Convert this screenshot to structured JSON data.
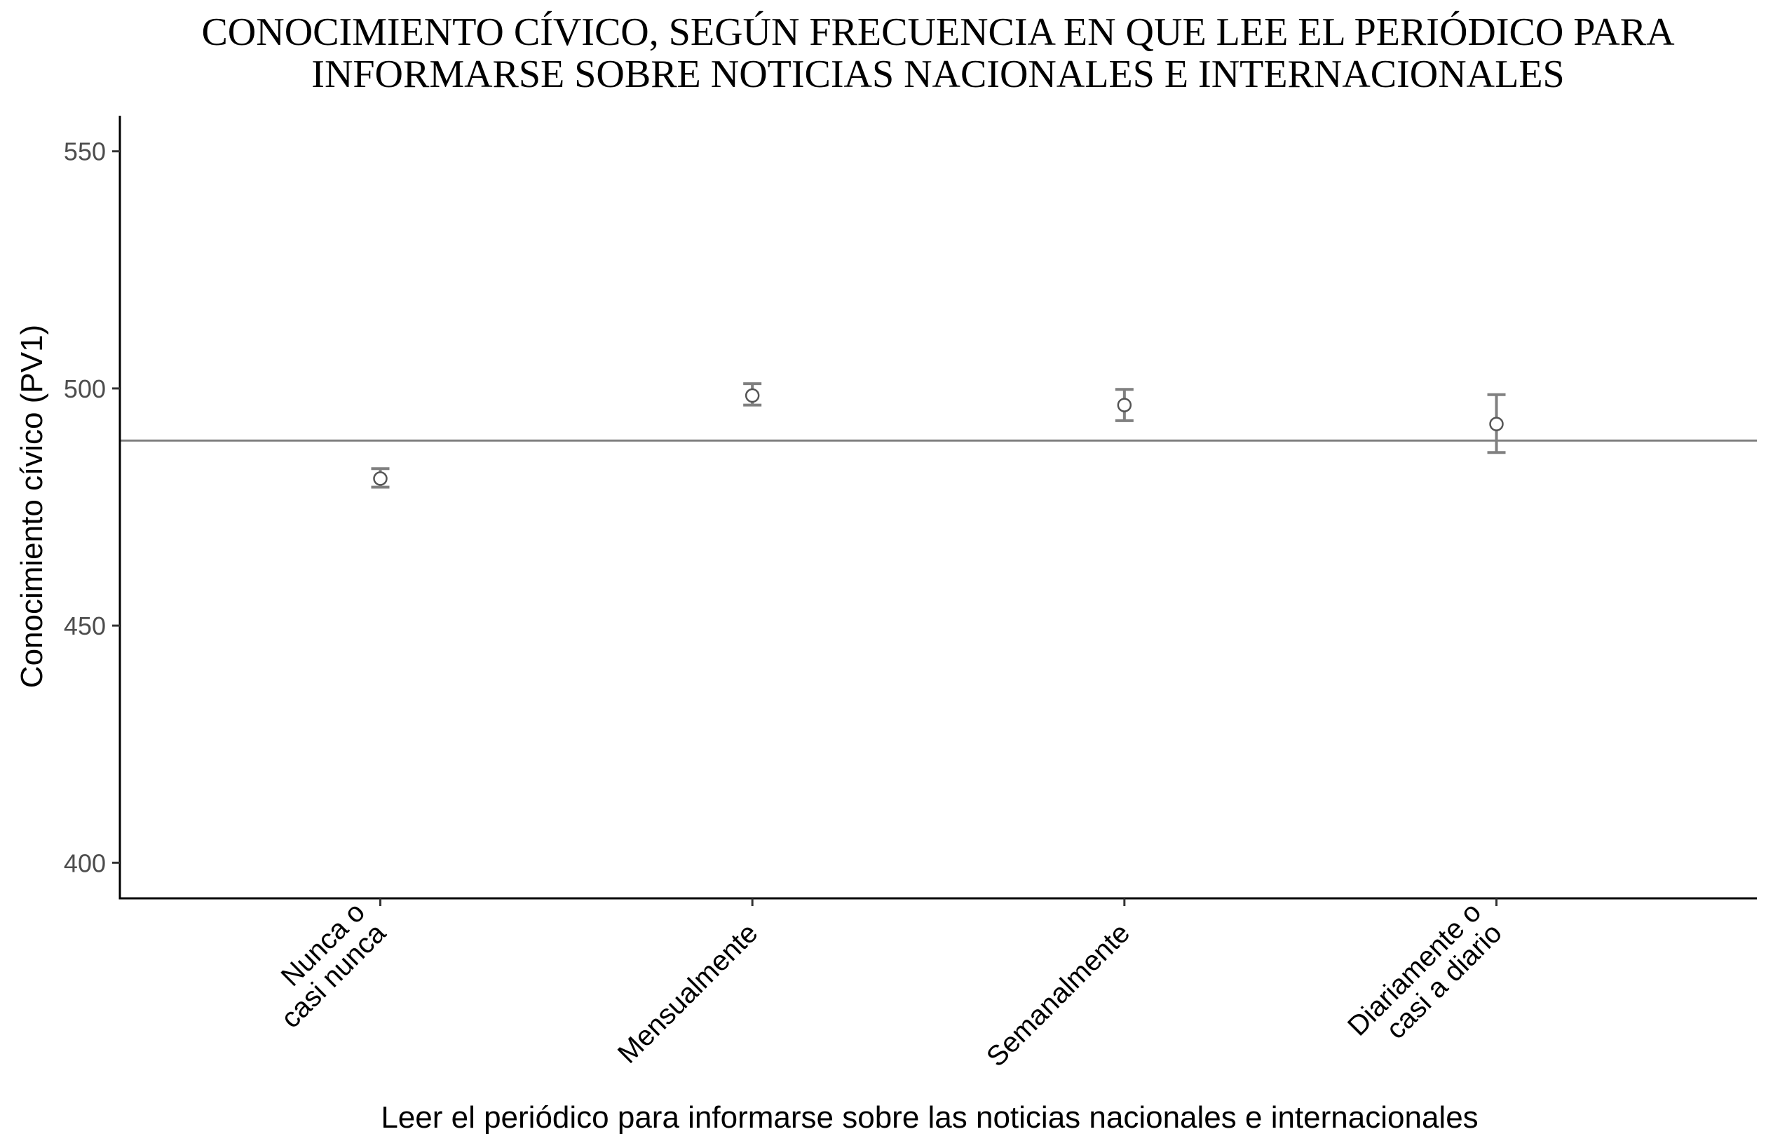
{
  "chart_data": {
    "type": "scatter",
    "title": [
      "CONOCIMIENTO CÍVICO, SEGÚN FRECUENCIA EN QUE LEE EL PERIÓDICO PARA",
      "INFORMARSE SOBRE NOTICIAS NACIONALES E INTERNACIONALES"
    ],
    "xlabel": "Leer el periódico para informarse sobre las noticias nacionales e internacionales",
    "ylabel": "Conocimiento cívico (PV1)",
    "categories": [
      [
        "Nunca o",
        "casi nunca"
      ],
      [
        "Mensualmente"
      ],
      [
        "Semanalmente"
      ],
      [
        "Diariamente o",
        "casi a diario"
      ]
    ],
    "values": [
      481,
      498.5,
      496.5,
      492.5
    ],
    "error_low": [
      479.2,
      496.5,
      493.2,
      486.5
    ],
    "error_high": [
      483.1,
      501.0,
      499.8,
      498.7
    ],
    "reference_line": 489,
    "yticks": [
      400,
      450,
      500,
      550
    ],
    "ylim": [
      392.5,
      557.5
    ],
    "grid": false,
    "color": "#808080"
  }
}
